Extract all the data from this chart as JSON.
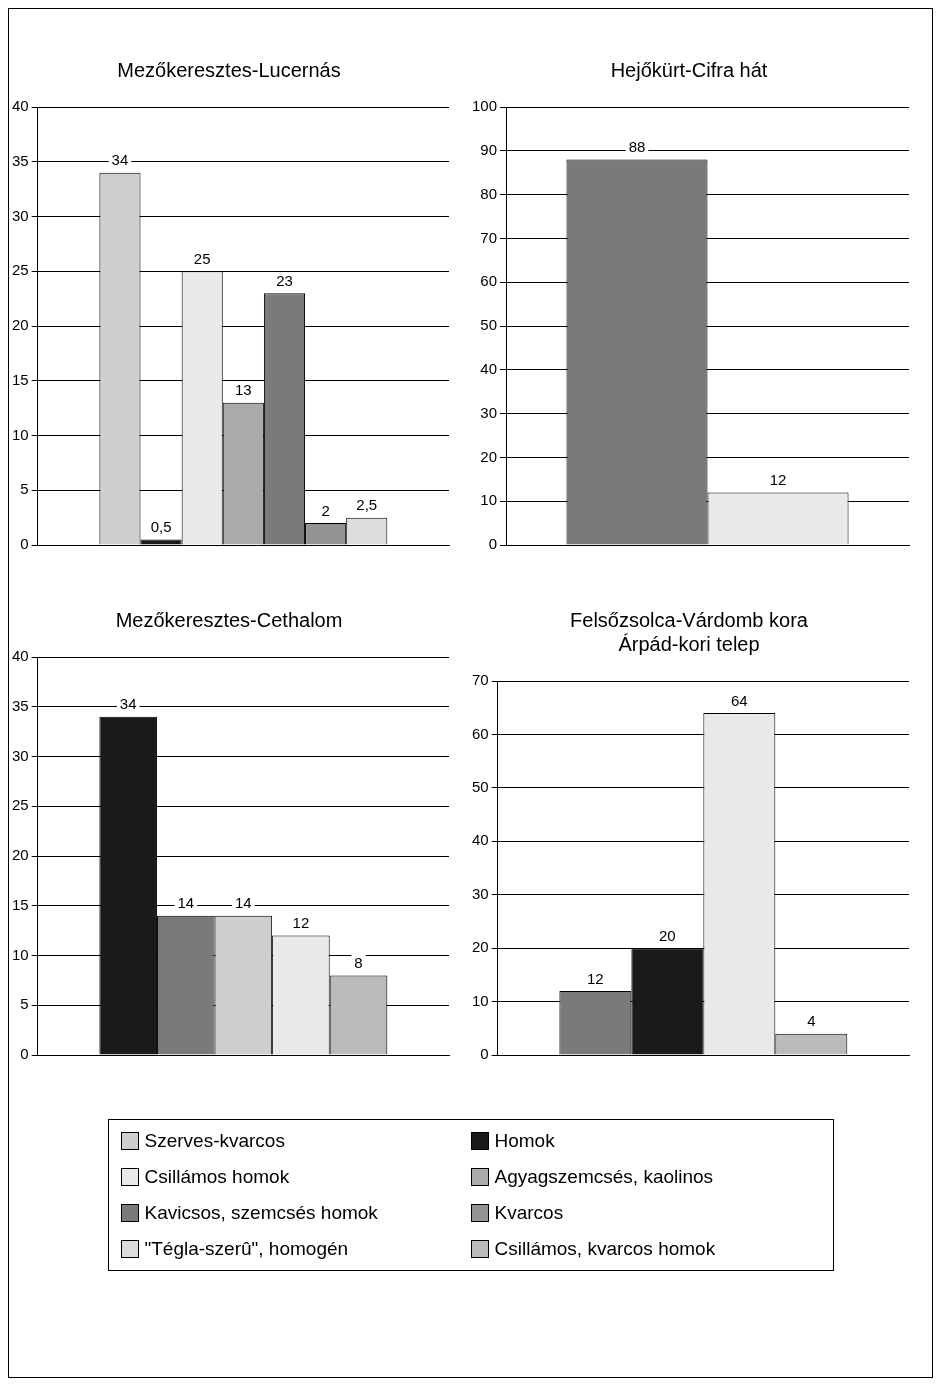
{
  "chart_data": [
    {
      "type": "bar",
      "title": "Mezőkeresztes-Lucernás",
      "categories": [
        null
      ],
      "ylim": [
        0,
        40
      ],
      "yticks": [
        0,
        5,
        10,
        15,
        20,
        25,
        30,
        35,
        40
      ],
      "grid": "y",
      "legend": "bottom",
      "series": [
        {
          "name": "Szerves-kvarcos",
          "color": "#cfcfcf",
          "values": [
            34
          ],
          "value_labels": [
            "34"
          ]
        },
        {
          "name": "Homok",
          "color": "#1a1a1a",
          "values": [
            0.5
          ],
          "value_labels": [
            "0,5"
          ]
        },
        {
          "name": "Csillámos homok",
          "color": "#e9e9e9",
          "values": [
            25
          ],
          "value_labels": [
            "25"
          ]
        },
        {
          "name": "Agyagszemcsés, kaolinos",
          "color": "#aaaaaa",
          "values": [
            13
          ],
          "value_labels": [
            "13"
          ]
        },
        {
          "name": "Kavicsos, szemcsés homok",
          "color": "#7a7a7a",
          "values": [
            23
          ],
          "value_labels": [
            "23"
          ]
        },
        {
          "name": "Kvarcos",
          "color": "#939393",
          "values": [
            2
          ],
          "value_labels": [
            "2"
          ]
        },
        {
          "name": "\"Tégla-szerû\", homogén",
          "color": "#dcdcdc",
          "values": [
            2.5
          ],
          "value_labels": [
            "2,5"
          ]
        }
      ]
    },
    {
      "type": "bar",
      "title": "Hejőkürt-Cifra hát",
      "categories": [
        null
      ],
      "ylim": [
        0,
        100
      ],
      "yticks": [
        0,
        10,
        20,
        30,
        40,
        50,
        60,
        70,
        80,
        90,
        100
      ],
      "grid": "y",
      "legend": "bottom",
      "data_labels": true,
      "series": [
        {
          "name": "Kavicsos, szemcsés homok",
          "color": "#7a7a7a",
          "values": [
            88
          ]
        },
        {
          "name": "Csillámos homok",
          "color": "#e9e9e9",
          "values": [
            12
          ]
        }
      ]
    },
    {
      "type": "bar",
      "title": "Mezőkeresztes-Cethalom",
      "categories": [
        null
      ],
      "ylim": [
        0,
        40
      ],
      "yticks": [
        0,
        5,
        10,
        15,
        20,
        25,
        30,
        35,
        40
      ],
      "grid": "y",
      "legend": "bottom",
      "data_labels": true,
      "series": [
        {
          "name": "Homok",
          "color": "#1a1a1a",
          "values": [
            34
          ]
        },
        {
          "name": "Kavicsos, szemcsés homok",
          "color": "#7a7a7a",
          "values": [
            14
          ]
        },
        {
          "name": "Szerves-kvarcos",
          "color": "#cfcfcf",
          "values": [
            14
          ]
        },
        {
          "name": "Csillámos homok",
          "color": "#e9e9e9",
          "values": [
            12
          ]
        },
        {
          "name": "Csillámos, kvarcos homok",
          "color": "#bbbbbb",
          "values": [
            8
          ]
        }
      ]
    },
    {
      "type": "bar",
      "title": "Felsőzsolca-Várdomb kora Árpád-kori telep",
      "categories": [
        null
      ],
      "ylim": [
        0,
        70
      ],
      "yticks": [
        0,
        10,
        20,
        30,
        40,
        50,
        60,
        70
      ],
      "grid": "y",
      "legend": "bottom",
      "data_labels": true,
      "series": [
        {
          "name": "Kavicsos, szemcsés homok",
          "color": "#7a7a7a",
          "values": [
            12
          ]
        },
        {
          "name": "Homok",
          "color": "#1a1a1a",
          "values": [
            20
          ]
        },
        {
          "name": "Csillámos homok",
          "color": "#e9e9e9",
          "values": [
            64
          ]
        },
        {
          "name": "Csillámos, kvarcos homok",
          "color": "#bbbbbb",
          "values": [
            4
          ]
        }
      ]
    }
  ]
}
